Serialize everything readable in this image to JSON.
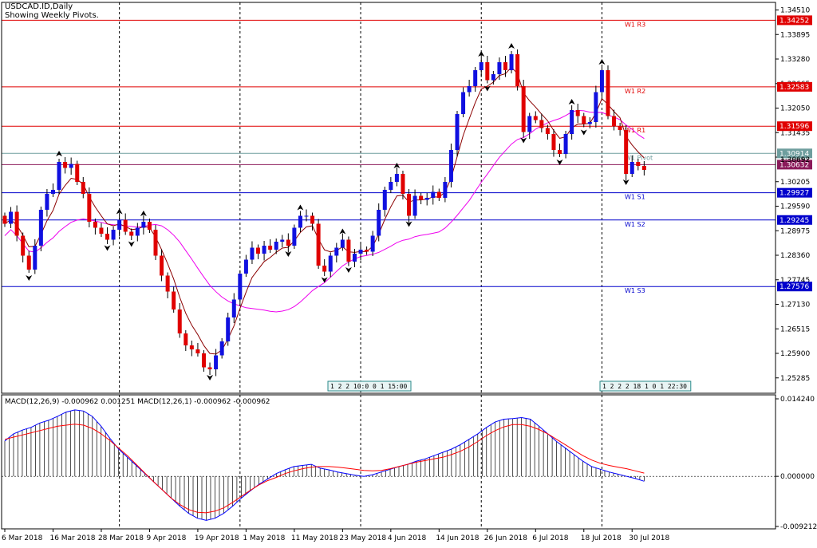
{
  "header": {
    "symbol": "USDCAD.ID,Daily",
    "note": "Showing Weekly Pivots."
  },
  "macd_header": "MACD(12,26,9) -0.000962 0.001251 MACD(12,26,1) -0.000962 -0.000962",
  "price_axis": {
    "ticks": [
      "1.34510",
      "1.33895",
      "1.33280",
      "1.32665",
      "1.32050",
      "1.31435",
      "1.30820",
      "1.30205",
      "1.29590",
      "1.28975",
      "1.28360",
      "1.27745",
      "1.27130",
      "1.26515",
      "1.25900",
      "1.25285"
    ],
    "min": 1.249,
    "max": 1.347
  },
  "pivots": [
    {
      "name": "W1 R3",
      "value": 1.34252,
      "label": "1.34252",
      "color": "#e00000",
      "tagcolor": "#e00000"
    },
    {
      "name": "W1 R2",
      "value": 1.32583,
      "label": "1.32583",
      "color": "#e00000",
      "tagcolor": "#e00000"
    },
    {
      "name": "W1 R1",
      "value": 1.31596,
      "label": "1.31596",
      "color": "#e00000",
      "tagcolor": "#e00000"
    },
    {
      "name": "W1 Pivot",
      "value": 1.30914,
      "label": "1.30914",
      "color": "#6e9e9e",
      "tagcolor": "#6e9e9e"
    },
    {
      "name": "",
      "value": 1.30632,
      "label": "1.30632",
      "color": "#8b1a5a",
      "tagcolor": "#8b1a5a"
    },
    {
      "name": "W1 S1",
      "value": 1.29927,
      "label": "1.29927",
      "color": "#0000cc",
      "tagcolor": "#0000cc"
    },
    {
      "name": "W1 S2",
      "value": 1.29245,
      "label": "1.29245",
      "color": "#0000cc",
      "tagcolor": "#0000cc"
    },
    {
      "name": "W1 S3",
      "value": 1.27576,
      "label": "1.27576",
      "color": "#0000cc",
      "tagcolor": "#0000cc"
    }
  ],
  "overlap_label": "1.30692",
  "time_box_1": "1 2 2 10:0 0 1 15:00",
  "time_box_2": "1 2 2 2 18 1 0 1 22:30",
  "x_axis": {
    "dates": [
      "6 Mar 2018",
      "16 Mar 2018",
      "28 Mar 2018",
      "9 Apr 2018",
      "19 Apr 2018",
      "1 May 2018",
      "11 May 2018",
      "23 May 2018",
      "4 Jun 2018",
      "14 Jun 2018",
      "26 Jun 2018",
      "6 Jul 2018",
      "18 Jul 2018",
      "30 Jul 2018"
    ],
    "date_bar_index": [
      0,
      8,
      16,
      24,
      32,
      40,
      48,
      56,
      64,
      72,
      80,
      88,
      96,
      104
    ],
    "grid_bar_index": [
      19,
      39,
      59,
      79,
      99
    ]
  },
  "macd_axis": {
    "ticks": [
      "0.014240",
      "0.000000",
      "-0.009212"
    ],
    "min": -0.00921,
    "max": 0.01424
  },
  "colors": {
    "bull": "#1010e0",
    "bear": "#e00000",
    "fast_ma": "#8b0000",
    "slow_ma": "#ee00ee",
    "macd_line": "#0000ff",
    "signal_line": "#ff0000",
    "histogram": "#000000",
    "marker": "#000000",
    "grid": "#000000"
  },
  "chart_data": [
    {
      "type": "candlestick",
      "title": "USDCAD.ID,Daily",
      "subtitle": "Showing Weekly Pivots.",
      "close": [
        1.2915,
        1.2945,
        1.2885,
        1.2835,
        1.28,
        1.286,
        1.295,
        1.299,
        1.3,
        1.307,
        1.3055,
        1.3065,
        1.302,
        1.299,
        1.292,
        1.2905,
        1.289,
        1.2875,
        1.29,
        1.2925,
        1.2895,
        1.2885,
        1.2905,
        1.292,
        1.29,
        1.2835,
        1.2785,
        1.2745,
        1.27,
        1.264,
        1.261,
        1.26,
        1.259,
        1.2555,
        1.255,
        1.2585,
        1.262,
        1.268,
        1.2725,
        1.279,
        1.2825,
        1.2855,
        1.284,
        1.286,
        1.285,
        1.287,
        1.2875,
        1.286,
        1.2905,
        1.2935,
        1.2935,
        1.2915,
        1.281,
        1.2795,
        1.2835,
        1.2855,
        1.2875,
        1.282,
        1.284,
        1.285,
        1.2845,
        1.2885,
        1.295,
        1.3,
        1.302,
        1.304,
        1.299,
        1.2935,
        1.2985,
        1.2975,
        1.298,
        1.2995,
        1.298,
        1.302,
        1.31,
        1.319,
        1.3245,
        1.326,
        1.33,
        1.332,
        1.3275,
        1.329,
        1.332,
        1.33,
        1.334,
        1.326,
        1.3145,
        1.3185,
        1.3175,
        1.3155,
        1.314,
        1.31,
        1.309,
        1.314,
        1.32,
        1.3185,
        1.3165,
        1.317,
        1.3245,
        1.33,
        1.3185,
        1.316,
        1.315,
        1.304,
        1.307,
        1.306,
        1.305
      ]
    },
    {
      "type": "line",
      "title": "MACD(12,26,9)",
      "series": [
        {
          "name": "MACD(12,26,9)",
          "values": [
            0.0065,
            0.0078,
            0.0085,
            0.009,
            0.0098,
            0.0103,
            0.011,
            0.0118,
            0.0122,
            0.012,
            0.011,
            0.0092,
            0.007,
            0.005,
            0.0035,
            0.002,
            0.0005,
            -0.001,
            -0.0025,
            -0.004,
            -0.0055,
            -0.0068,
            -0.0077,
            -0.0081,
            -0.0077,
            -0.0068,
            -0.0055,
            -0.004,
            -0.0027,
            -0.0015,
            -0.0005,
            0.0005,
            0.0012,
            0.0018,
            0.002,
            0.0022,
            0.0015,
            0.0012,
            0.0008,
            0.0005,
            0.0002,
            0.0,
            0.0003,
            0.0008,
            0.0013,
            0.0018,
            0.0022,
            0.0028,
            0.0032,
            0.0038,
            0.0044,
            0.005,
            0.0058,
            0.0068,
            0.0078,
            0.009,
            0.01,
            0.0105,
            0.0106,
            0.0108,
            0.0105,
            0.0092,
            0.0078,
            0.0064,
            0.0052,
            0.004,
            0.0028,
            0.0018,
            0.0013,
            0.0008,
            0.0004,
            0.0,
            -0.0004,
            -0.0009
          ]
        },
        {
          "name": "MACD(12,26,1)",
          "values": [
            0.0068,
            0.0072,
            0.0076,
            0.008,
            0.0084,
            0.0088,
            0.0092,
            0.0094,
            0.0096,
            0.0094,
            0.0088,
            0.0078,
            0.0066,
            0.0052,
            0.0038,
            0.0022,
            0.0006,
            -0.001,
            -0.0025,
            -0.004,
            -0.0052,
            -0.0061,
            -0.0066,
            -0.0067,
            -0.0064,
            -0.0058,
            -0.0048,
            -0.0037,
            -0.0026,
            -0.0016,
            -0.0008,
            -0.0002,
            0.0005,
            0.001,
            0.0014,
            0.0017,
            0.0018,
            0.0018,
            0.0017,
            0.0015,
            0.0013,
            0.0011,
            0.001,
            0.0011,
            0.0014,
            0.0018,
            0.0022,
            0.0026,
            0.0029,
            0.0032,
            0.0035,
            0.004,
            0.0046,
            0.0054,
            0.0064,
            0.0075,
            0.0084,
            0.0091,
            0.0095,
            0.0095,
            0.0092,
            0.0086,
            0.0078,
            0.0068,
            0.0058,
            0.0048,
            0.0038,
            0.003,
            0.0024,
            0.002,
            0.0017,
            0.0014,
            0.001,
            0.0006
          ]
        }
      ],
      "ylim": [
        -0.009212,
        0.01424
      ]
    }
  ]
}
